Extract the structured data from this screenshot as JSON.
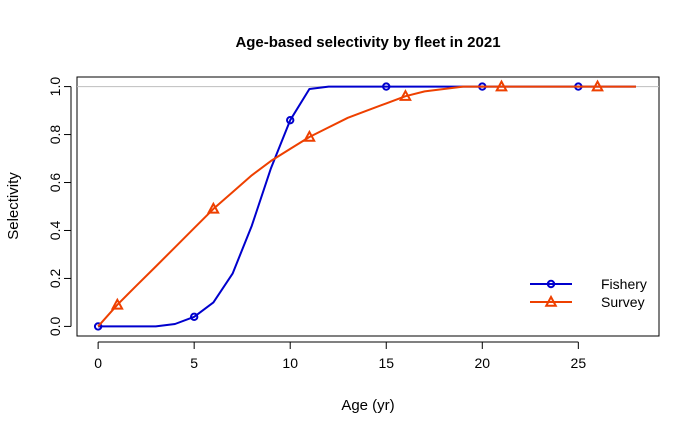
{
  "chart_data": {
    "type": "line",
    "title": "Age-based selectivity by fleet in 2021",
    "xlabel": "Age (yr)",
    "ylabel": "Selectivity",
    "xlim": [
      -1.1,
      29.2
    ],
    "ylim": [
      -0.04,
      1.04
    ],
    "x_ticks": [
      0,
      5,
      10,
      15,
      20,
      25
    ],
    "x_tick_labels": [
      "0",
      "5",
      "10",
      "15",
      "20",
      "25"
    ],
    "y_ticks": [
      0.0,
      0.2,
      0.4,
      0.6,
      0.8,
      1.0
    ],
    "y_tick_labels": [
      "0.0",
      "0.2",
      "0.4",
      "0.6",
      "0.8",
      "1.0"
    ],
    "reference_line_y": 1.0,
    "reference_line_color": "#bebebe",
    "legend_position": "bottom-right",
    "series": [
      {
        "name": "Fishery",
        "color": "#0000cd",
        "marker": "circle",
        "marker_every": 5,
        "marker_offset": 0,
        "x": [
          0,
          1,
          2,
          3,
          4,
          5,
          6,
          7,
          8,
          9,
          10,
          11,
          12,
          13,
          14,
          15,
          16,
          17,
          18,
          19,
          20,
          21,
          22,
          23,
          24,
          25,
          26,
          27,
          28
        ],
        "values": [
          0,
          0,
          0,
          0,
          0.01,
          0.04,
          0.1,
          0.22,
          0.42,
          0.66,
          0.86,
          0.99,
          1,
          1,
          1,
          1,
          1,
          1,
          1,
          1,
          1,
          1,
          1,
          1,
          1,
          1,
          1,
          1,
          1
        ]
      },
      {
        "name": "Survey",
        "color": "#ee4000",
        "marker": "triangle",
        "marker_every": 5,
        "marker_offset": 1,
        "x": [
          0,
          1,
          2,
          3,
          4,
          5,
          6,
          7,
          8,
          9,
          10,
          11,
          12,
          13,
          14,
          15,
          16,
          17,
          18,
          19,
          20,
          21,
          22,
          23,
          24,
          25,
          26,
          27,
          28
        ],
        "values": [
          0,
          0.09,
          0.17,
          0.25,
          0.33,
          0.41,
          0.49,
          0.56,
          0.63,
          0.69,
          0.74,
          0.79,
          0.83,
          0.87,
          0.9,
          0.93,
          0.96,
          0.98,
          0.99,
          1,
          1,
          1,
          1,
          1,
          1,
          1,
          1,
          1,
          1
        ]
      }
    ]
  }
}
